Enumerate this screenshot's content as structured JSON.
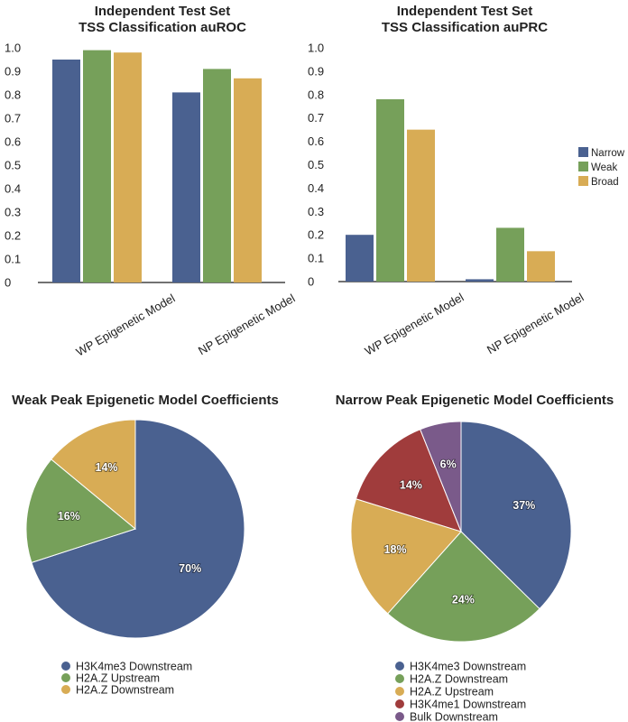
{
  "colors": {
    "narrow": "#4a6190",
    "weak": "#76a05a",
    "broad": "#d8ac55",
    "h3k4me1": "#a03c3c",
    "bulk": "#7a5a8a"
  },
  "chart_data": [
    {
      "type": "bar",
      "title_lines": [
        "Independent Test Set",
        "TSS Classification auROC"
      ],
      "categories": [
        "WP Epigenetic Model",
        "NP Epigenetic Model"
      ],
      "ylim": [
        0,
        1.0
      ],
      "yticks": [
        "0",
        "0.1",
        "0.2",
        "0.3",
        "0.4",
        "0.5",
        "0.6",
        "0.7",
        "0.8",
        "0.9",
        "1.0"
      ],
      "series": [
        {
          "name": "Narrow",
          "color_key": "narrow",
          "values": [
            0.95,
            0.81
          ]
        },
        {
          "name": "Weak",
          "color_key": "weak",
          "values": [
            0.99,
            0.91
          ]
        },
        {
          "name": "Broad",
          "color_key": "broad",
          "values": [
            0.98,
            0.87
          ]
        }
      ],
      "grid": false
    },
    {
      "type": "bar",
      "title_lines": [
        "Independent Test Set",
        "TSS Classification auPRC"
      ],
      "categories": [
        "WP Epigenetic Model",
        "NP Epigenetic Model"
      ],
      "ylim": [
        0,
        1.0
      ],
      "yticks": [
        "0",
        "0.1",
        "0.2",
        "0.3",
        "0.4",
        "0.5",
        "0.6",
        "0.7",
        "0.8",
        "0.9",
        "1.0"
      ],
      "series": [
        {
          "name": "Narrow",
          "color_key": "narrow",
          "values": [
            0.2,
            0.01
          ]
        },
        {
          "name": "Weak",
          "color_key": "weak",
          "values": [
            0.78,
            0.23
          ]
        },
        {
          "name": "Broad",
          "color_key": "broad",
          "values": [
            0.65,
            0.13
          ]
        }
      ],
      "legend": [
        "Narrow",
        "Weak",
        "Broad"
      ],
      "legend_position": "right",
      "grid": false
    },
    {
      "type": "pie",
      "title": "Weak Peak Epigenetic Model Coefficients",
      "slices": [
        {
          "label": "H3K4me3 Downstream",
          "value": 70,
          "text": "70%",
          "color_key": "narrow"
        },
        {
          "label": "H2A.Z Upstream",
          "value": 16,
          "text": "16%",
          "color_key": "weak"
        },
        {
          "label": "H2A.Z Downstream",
          "value": 14,
          "text": "14%",
          "color_key": "broad"
        }
      ],
      "legend_position": "bottom"
    },
    {
      "type": "pie",
      "title": "Narrow Peak Epigenetic Model Coefficients",
      "slices": [
        {
          "label": "H3K4me3 Downstream",
          "value": 37,
          "text": "37%",
          "color_key": "narrow"
        },
        {
          "label": "H2A.Z Downstream",
          "value": 24,
          "text": "24%",
          "color_key": "weak"
        },
        {
          "label": "H2A.Z Upstream",
          "value": 18,
          "text": "18%",
          "color_key": "broad"
        },
        {
          "label": "H3K4me1 Downstream",
          "value": 14,
          "text": "14%",
          "color_key": "h3k4me1"
        },
        {
          "label": "Bulk Downstream",
          "value": 6,
          "text": "6%",
          "color_key": "bulk"
        }
      ],
      "legend_position": "bottom"
    }
  ]
}
